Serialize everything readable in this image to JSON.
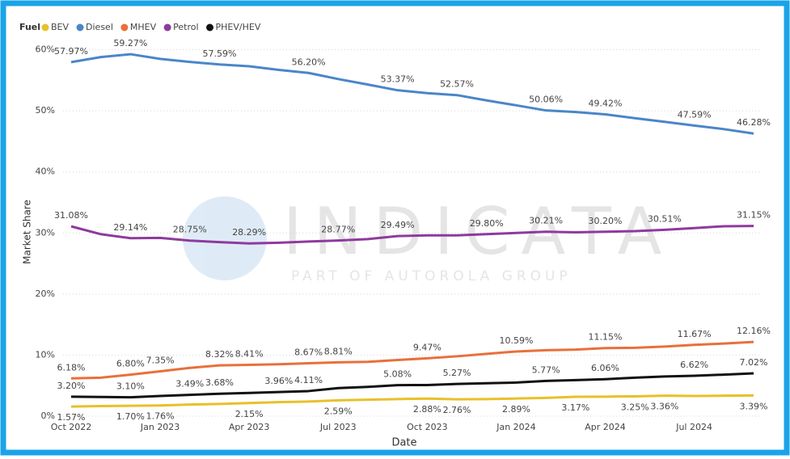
{
  "chart_data": {
    "type": "line",
    "legend_title": "Fuel",
    "xlabel": "Date",
    "ylabel": "Market Share",
    "watermark": {
      "text": "INDICATA",
      "subtitle": "PART OF AUTOROLA GROUP"
    },
    "categories": [
      "Oct 2022",
      null,
      null,
      "Jan 2023",
      null,
      null,
      "Apr 2023",
      null,
      null,
      "Jul 2023",
      null,
      null,
      "Oct 2023",
      null,
      null,
      "Jan 2024",
      null,
      null,
      "Apr 2024",
      null,
      null,
      "Jul 2024",
      null,
      null
    ],
    "ylim": [
      0,
      61
    ],
    "yticks": [
      {
        "value": 0,
        "label": "0%"
      },
      {
        "value": 10,
        "label": "10%"
      },
      {
        "value": 20,
        "label": "20%"
      },
      {
        "value": 30,
        "label": "30%"
      },
      {
        "value": 40,
        "label": "40%"
      },
      {
        "value": 50,
        "label": "50%"
      },
      {
        "value": 60,
        "label": "60%"
      }
    ],
    "grid": true,
    "legend": "top-left",
    "series": [
      {
        "name": "BEV",
        "color": "#e8c02a",
        "values": [
          1.57,
          1.65,
          1.7,
          1.76,
          1.9,
          2.0,
          2.15,
          2.3,
          2.4,
          2.59,
          2.7,
          2.8,
          2.88,
          2.76,
          2.8,
          2.89,
          3.0,
          3.17,
          3.2,
          3.25,
          3.36,
          3.3,
          3.35,
          3.39
        ],
        "value_labels": [
          "1.57%",
          null,
          "1.70%",
          "1.76%",
          null,
          null,
          "2.15%",
          null,
          null,
          "2.59%",
          null,
          null,
          "2.88%",
          "2.76%",
          null,
          "2.89%",
          null,
          "3.17%",
          null,
          "3.25%",
          "3.36%",
          null,
          null,
          "3.39%"
        ]
      },
      {
        "name": "Diesel",
        "color": "#4a86c8",
        "values": [
          57.97,
          58.8,
          59.27,
          58.5,
          58.0,
          57.59,
          57.3,
          56.7,
          56.2,
          55.2,
          54.3,
          53.37,
          52.9,
          52.57,
          51.7,
          50.9,
          50.06,
          49.8,
          49.42,
          48.8,
          48.2,
          47.59,
          47.0,
          46.28
        ],
        "value_labels": [
          "57.97%",
          null,
          "59.27%",
          null,
          null,
          "57.59%",
          null,
          null,
          "56.20%",
          null,
          null,
          "53.37%",
          null,
          "52.57%",
          null,
          null,
          "50.06%",
          null,
          "49.42%",
          null,
          null,
          "47.59%",
          null,
          "46.28%"
        ]
      },
      {
        "name": "MHEV",
        "color": "#e8703a",
        "values": [
          6.18,
          6.3,
          6.8,
          7.35,
          7.9,
          8.32,
          8.41,
          8.5,
          8.67,
          8.81,
          8.9,
          9.2,
          9.47,
          9.8,
          10.2,
          10.59,
          10.8,
          10.9,
          11.15,
          11.2,
          11.4,
          11.67,
          11.9,
          12.16
        ],
        "value_labels": [
          "6.18%",
          null,
          "6.80%",
          "7.35%",
          null,
          "8.32%",
          "8.41%",
          null,
          "8.67%",
          "8.81%",
          null,
          null,
          "9.47%",
          null,
          null,
          "10.59%",
          null,
          null,
          "11.15%",
          null,
          null,
          "11.67%",
          null,
          "12.16%"
        ]
      },
      {
        "name": "Petrol",
        "color": "#8e3a9e",
        "values": [
          31.08,
          29.8,
          29.14,
          29.2,
          28.75,
          28.5,
          28.29,
          28.4,
          28.6,
          28.77,
          29.0,
          29.49,
          29.6,
          29.6,
          29.8,
          30.0,
          30.21,
          30.1,
          30.2,
          30.3,
          30.51,
          30.8,
          31.1,
          31.15
        ],
        "value_labels": [
          "31.08%",
          null,
          "29.14%",
          null,
          "28.75%",
          null,
          "28.29%",
          null,
          null,
          "28.77%",
          null,
          "29.49%",
          null,
          null,
          "29.80%",
          null,
          "30.21%",
          null,
          "30.20%",
          null,
          "30.51%",
          null,
          null,
          "31.15%"
        ]
      },
      {
        "name": "PHEV/HEV",
        "color": "#111111",
        "values": [
          3.2,
          3.15,
          3.1,
          3.3,
          3.49,
          3.68,
          3.8,
          3.96,
          4.11,
          4.6,
          4.8,
          5.08,
          5.1,
          5.27,
          5.4,
          5.5,
          5.77,
          5.9,
          6.06,
          6.3,
          6.5,
          6.62,
          6.8,
          7.02
        ],
        "value_labels": [
          "3.20%",
          null,
          "3.10%",
          null,
          "3.49%",
          "3.68%",
          null,
          "3.96%",
          "4.11%",
          null,
          null,
          "5.08%",
          null,
          "5.27%",
          null,
          null,
          "5.77%",
          null,
          "6.06%",
          null,
          null,
          "6.62%",
          null,
          "7.02%"
        ]
      }
    ]
  }
}
